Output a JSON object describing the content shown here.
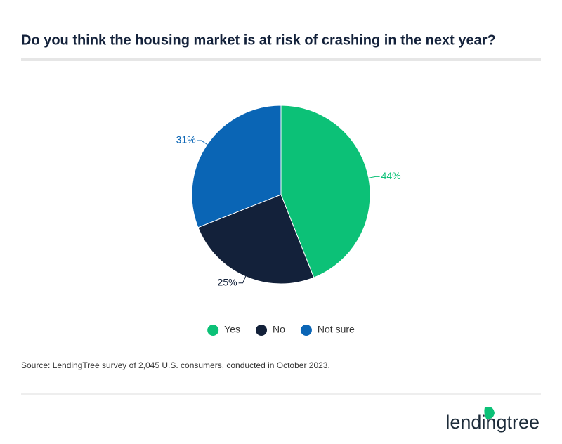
{
  "chart_data": {
    "type": "pie",
    "title": "Do you think the housing market is at risk of crashing in the next year?",
    "categories": [
      "Yes",
      "No",
      "Not sure"
    ],
    "values": [
      44,
      25,
      31
    ],
    "value_labels": [
      "44%",
      "25%",
      "31%"
    ],
    "colors": [
      "#0cc177",
      "#13213a",
      "#0a65b5"
    ],
    "legend": "bottom",
    "source": "Source: LendingTree survey of 2,045 U.S. consumers, conducted in October 2023."
  },
  "footer": {
    "logo": "lendingtree"
  }
}
